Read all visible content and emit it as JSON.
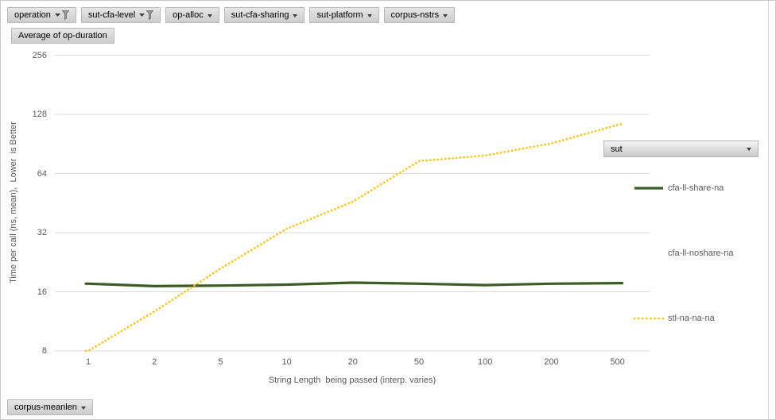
{
  "window": {
    "background": "#ffffff",
    "border_color": "#c9c9c9"
  },
  "filter_buttons": [
    {
      "label": "operation",
      "icon": "filter-funnel-icon",
      "filtered": true
    },
    {
      "label": "sut-cfa-level",
      "icon": "filter-funnel-icon",
      "filtered": true
    },
    {
      "label": "op-alloc",
      "icon": "chevron-down-icon",
      "filtered": false
    },
    {
      "label": "sut-cfa-sharing",
      "icon": "chevron-down-icon",
      "filtered": false
    },
    {
      "label": "sut-platform",
      "icon": "chevron-down-icon",
      "filtered": false
    },
    {
      "label": "corpus-nstrs",
      "icon": "chevron-down-icon",
      "filtered": false
    }
  ],
  "value_field_button": {
    "label": "Average of op-duration"
  },
  "legend_field_button": {
    "label": "sut",
    "icon": "chevron-down-icon"
  },
  "axis_field_button": {
    "label": "corpus-meanlen",
    "icon": "chevron-down-icon"
  },
  "legend": {
    "entries": [
      {
        "label": "cfa-ll-share-na",
        "line_style": "solid",
        "color": "#3b5c24"
      },
      {
        "label": "cfa-ll-noshare-na",
        "line_style": "none",
        "color": ""
      },
      {
        "label": "stl-na-na-na",
        "line_style": "dotted",
        "color": "#ffc000"
      }
    ]
  },
  "chart_data": {
    "type": "line",
    "x": [
      1,
      2,
      5,
      10,
      20,
      50,
      100,
      200,
      500
    ],
    "x_scale": "log",
    "y_scale": "log",
    "xlabel": "String Length  being passed (interp. varies)",
    "ylabel": "Time per call (ns, mean),  Lower  is Better",
    "yticks": [
      256,
      128,
      64,
      32,
      16,
      8
    ],
    "ylim": [
      8,
      256
    ],
    "grid": "horizontal",
    "legend_position": "right",
    "series": [
      {
        "name": "cfa-ll-share-na",
        "color": "#3b5c24",
        "style": "solid",
        "values": [
          17.6,
          17.1,
          17.2,
          17.4,
          17.8,
          17.6,
          17.3,
          17.6,
          17.7
        ]
      },
      {
        "name": "cfa-ll-noshare-na",
        "color": "",
        "style": "hidden",
        "values": []
      },
      {
        "name": "stl-na-na-na",
        "color": "#ffc000",
        "style": "dotted",
        "values": [
          8,
          12.7,
          21,
          33.5,
          46,
          74,
          79,
          91,
          113
        ]
      }
    ],
    "colors": {
      "gridline": "#d9d9d9",
      "axis_text": "#595959"
    }
  }
}
